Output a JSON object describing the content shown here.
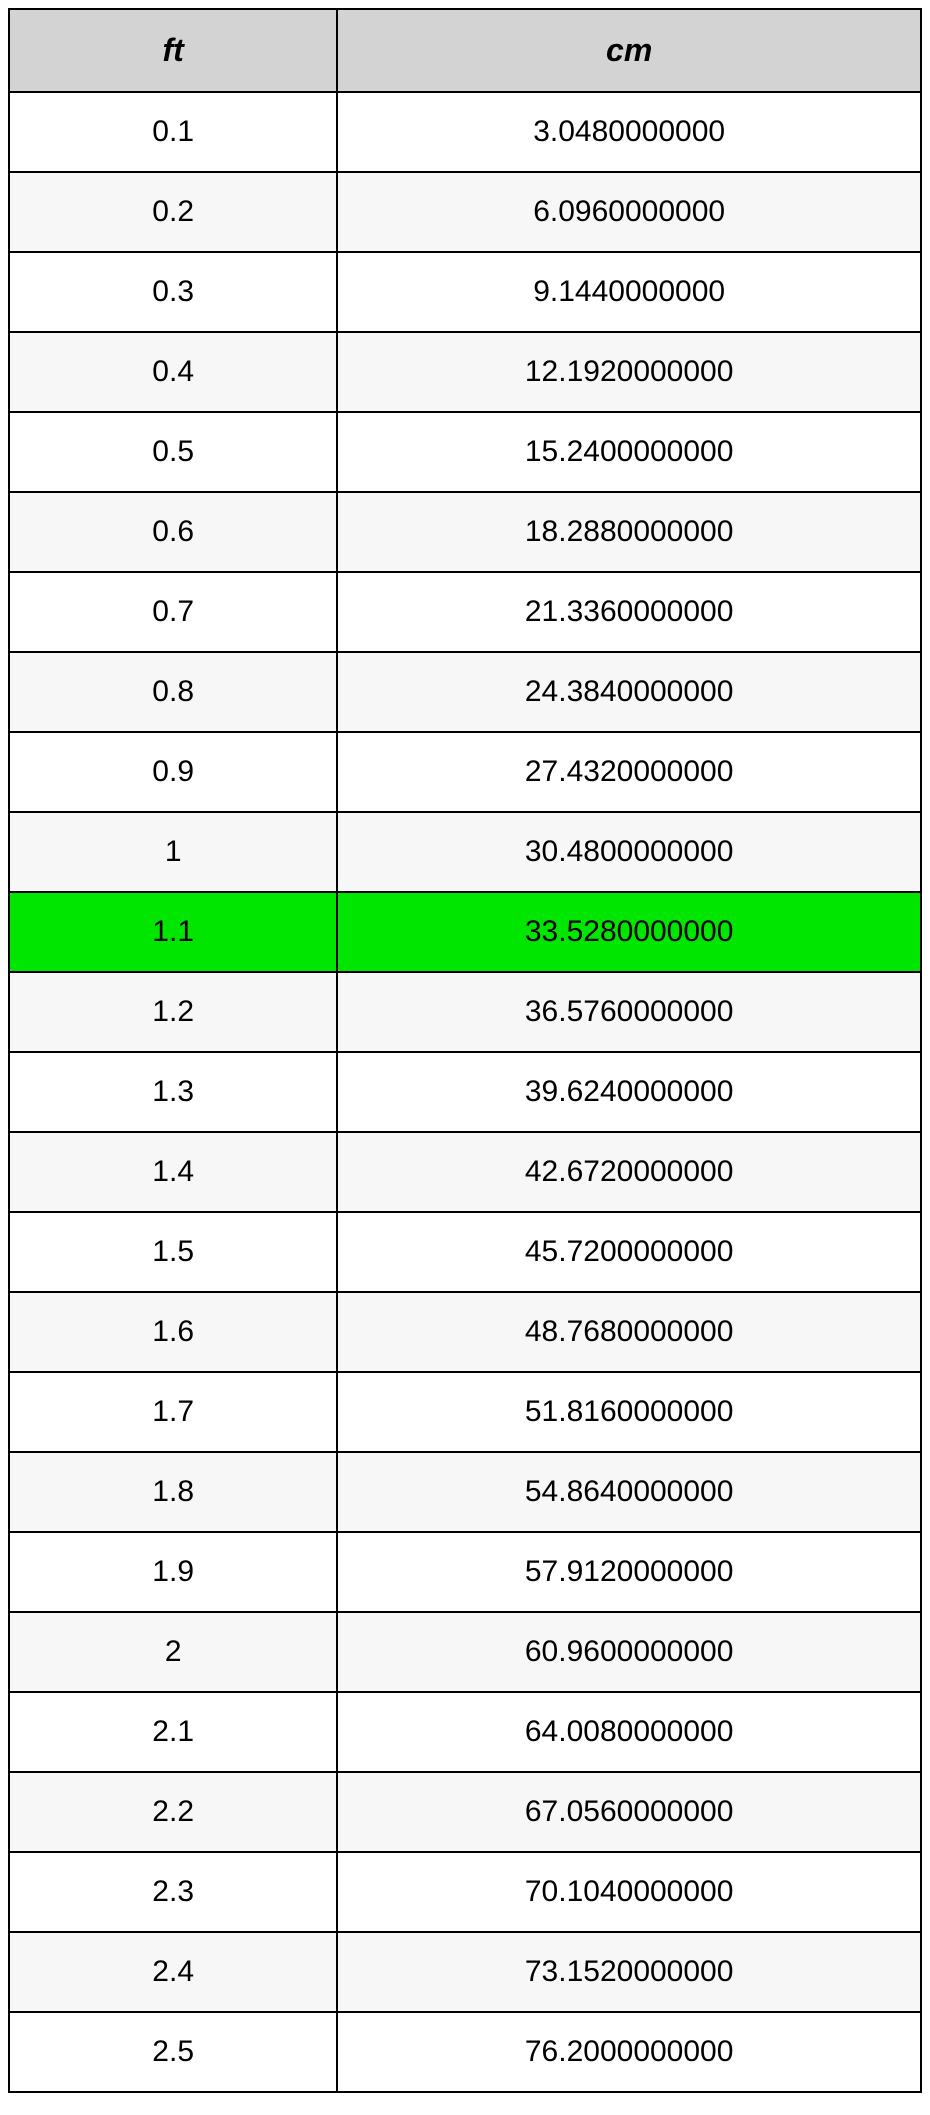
{
  "table": {
    "columns": [
      "ft",
      "cm"
    ],
    "highlight_color": "#00e600",
    "header_bg": "#d3d3d3",
    "alt_row_bg": "#f7f7f7",
    "border_color": "#000000",
    "font_size_header": 32,
    "font_size_cell": 30,
    "highlighted_row_index": 10,
    "rows": [
      {
        "ft": "0.1",
        "cm": "3.0480000000"
      },
      {
        "ft": "0.2",
        "cm": "6.0960000000"
      },
      {
        "ft": "0.3",
        "cm": "9.1440000000"
      },
      {
        "ft": "0.4",
        "cm": "12.1920000000"
      },
      {
        "ft": "0.5",
        "cm": "15.2400000000"
      },
      {
        "ft": "0.6",
        "cm": "18.2880000000"
      },
      {
        "ft": "0.7",
        "cm": "21.3360000000"
      },
      {
        "ft": "0.8",
        "cm": "24.3840000000"
      },
      {
        "ft": "0.9",
        "cm": "27.4320000000"
      },
      {
        "ft": "1",
        "cm": "30.4800000000"
      },
      {
        "ft": "1.1",
        "cm": "33.5280000000"
      },
      {
        "ft": "1.2",
        "cm": "36.5760000000"
      },
      {
        "ft": "1.3",
        "cm": "39.6240000000"
      },
      {
        "ft": "1.4",
        "cm": "42.6720000000"
      },
      {
        "ft": "1.5",
        "cm": "45.7200000000"
      },
      {
        "ft": "1.6",
        "cm": "48.7680000000"
      },
      {
        "ft": "1.7",
        "cm": "51.8160000000"
      },
      {
        "ft": "1.8",
        "cm": "54.8640000000"
      },
      {
        "ft": "1.9",
        "cm": "57.9120000000"
      },
      {
        "ft": "2",
        "cm": "60.9600000000"
      },
      {
        "ft": "2.1",
        "cm": "64.0080000000"
      },
      {
        "ft": "2.2",
        "cm": "67.0560000000"
      },
      {
        "ft": "2.3",
        "cm": "70.1040000000"
      },
      {
        "ft": "2.4",
        "cm": "73.1520000000"
      },
      {
        "ft": "2.5",
        "cm": "76.2000000000"
      }
    ]
  }
}
